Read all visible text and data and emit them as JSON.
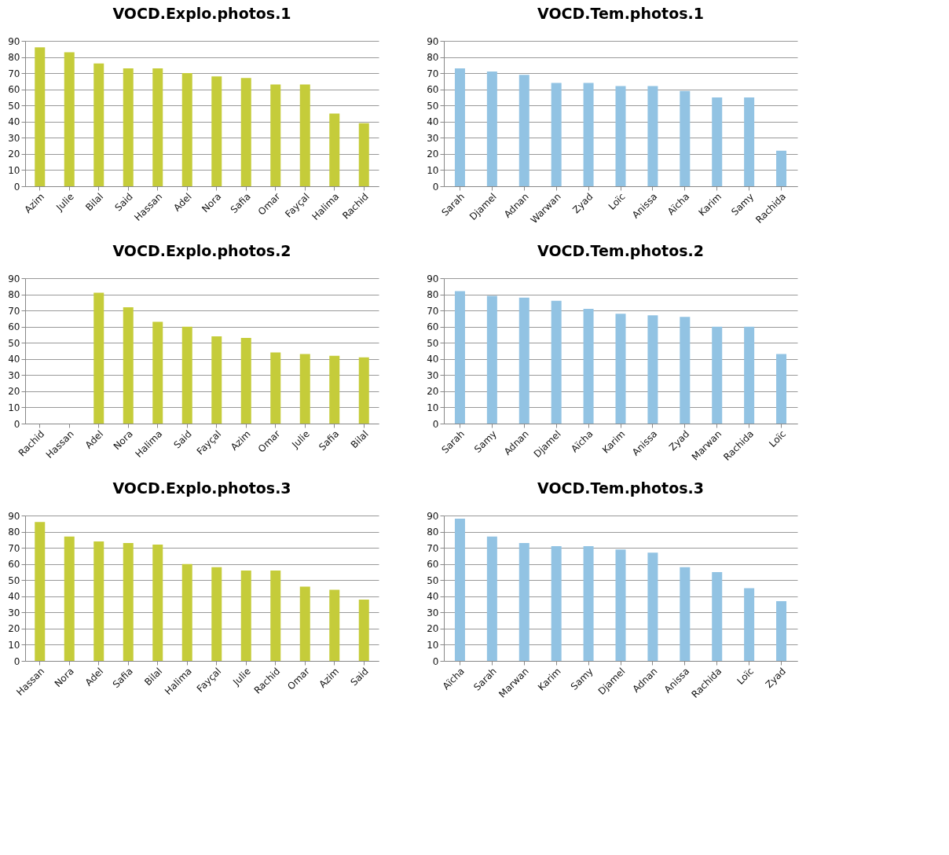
{
  "chart_data": [
    {
      "type": "bar",
      "title": "VOCD.Explo.photos.1",
      "categories": [
        "Azim",
        "Julie",
        "Bilal",
        "Said",
        "Hassan",
        "Adel",
        "Nora",
        "Safia",
        "Omar",
        "Fayçal",
        "Halima",
        "Rachid"
      ],
      "values": [
        86,
        83,
        76,
        73,
        73,
        70,
        68,
        67,
        63,
        63,
        45,
        39
      ],
      "color": "#c5cc3a",
      "ylim": [
        0,
        90
      ],
      "yticks": [
        0,
        10,
        20,
        30,
        40,
        50,
        60,
        70,
        80,
        90
      ],
      "grid": "y"
    },
    {
      "type": "bar",
      "title": "VOCD.Tem.photos.1",
      "categories": [
        "Sarah",
        "Djamel",
        "Adnan",
        "Warwan",
        "Zyad",
        "Loïc",
        "Anissa",
        "Aïcha",
        "Karim",
        "Samy",
        "Rachida"
      ],
      "values": [
        73,
        71,
        69,
        64,
        64,
        62,
        62,
        59,
        55,
        55,
        22
      ],
      "color": "#92c3e3",
      "ylim": [
        0,
        90
      ],
      "yticks": [
        0,
        10,
        20,
        30,
        40,
        50,
        60,
        70,
        80,
        90
      ],
      "grid": "y"
    },
    {
      "type": "bar",
      "title": "VOCD.Explo.photos.2",
      "categories": [
        "Rachid",
        "Hassan",
        "Adel",
        "Nora",
        "Halima",
        "Said",
        "Fayçal",
        "Azim",
        "Omar",
        "Julie",
        "Safia",
        "Bilal"
      ],
      "values": [
        0,
        0,
        81,
        72,
        63,
        60,
        54,
        53,
        44,
        43,
        42,
        41
      ],
      "color": "#c5cc3a",
      "ylim": [
        0,
        90
      ],
      "yticks": [
        0,
        10,
        20,
        30,
        40,
        50,
        60,
        70,
        80,
        90
      ],
      "grid": "y"
    },
    {
      "type": "bar",
      "title": "VOCD.Tem.photos.2",
      "categories": [
        "Sarah",
        "Samy",
        "Adnan",
        "Djamel",
        "Aïcha",
        "Karim",
        "Anissa",
        "Zyad",
        "Marwan",
        "Rachida",
        "Loïc"
      ],
      "values": [
        82,
        79,
        78,
        76,
        71,
        68,
        67,
        66,
        60,
        60,
        43
      ],
      "color": "#92c3e3",
      "ylim": [
        0,
        90
      ],
      "yticks": [
        0,
        10,
        20,
        30,
        40,
        50,
        60,
        70,
        80,
        90
      ],
      "grid": "y"
    },
    {
      "type": "bar",
      "title": "VOCD.Explo.photos.3",
      "categories": [
        "Hassan",
        "Nora",
        "Adel",
        "Safia",
        "Bilal",
        "Halima",
        "Fayçal",
        "Julie",
        "Rachid",
        "Omar",
        "Azim",
        "Said"
      ],
      "values": [
        86,
        77,
        74,
        73,
        72,
        60,
        58,
        56,
        56,
        46,
        44,
        38
      ],
      "color": "#c5cc3a",
      "ylim": [
        0,
        90
      ],
      "yticks": [
        0,
        10,
        20,
        30,
        40,
        50,
        60,
        70,
        80,
        90
      ],
      "grid": "y"
    },
    {
      "type": "bar",
      "title": "VOCD.Tem.photos.3",
      "categories": [
        "Aïcha",
        "Sarah",
        "Marwan",
        "Karim",
        "Samy",
        "Djamel",
        "Adnan",
        "Anissa",
        "Rachida",
        "Loïc",
        "Zyad"
      ],
      "values": [
        88,
        77,
        73,
        71,
        71,
        69,
        67,
        58,
        55,
        45,
        37
      ],
      "color": "#92c3e3",
      "ylim": [
        0,
        90
      ],
      "yticks": [
        0,
        10,
        20,
        30,
        40,
        50,
        60,
        70,
        80,
        90
      ],
      "grid": "y"
    }
  ]
}
